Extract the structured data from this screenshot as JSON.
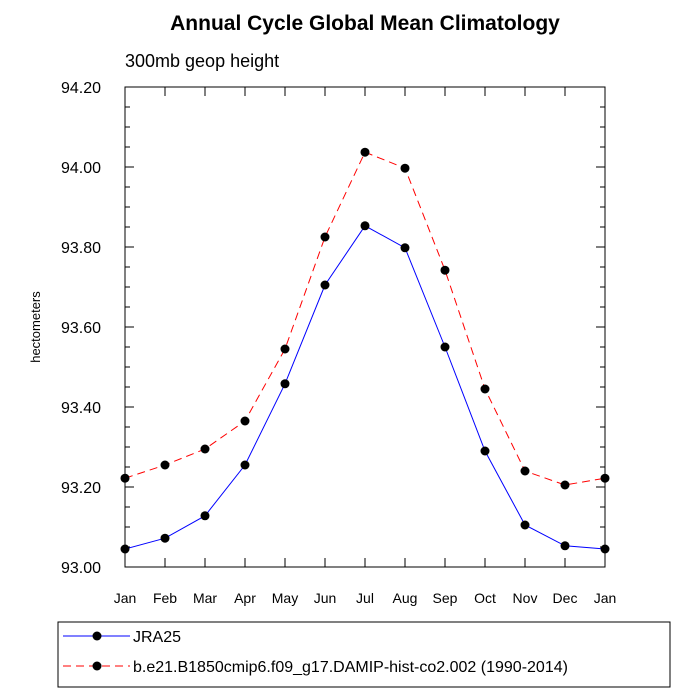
{
  "chart_data": {
    "type": "line",
    "title": "Annual Cycle Global Mean Climatology",
    "subtitle": "300mb geop height",
    "xlabel": "",
    "ylabel": "hectometers",
    "categories": [
      "Jan",
      "Feb",
      "Mar",
      "Apr",
      "May",
      "Jun",
      "Jul",
      "Aug",
      "Sep",
      "Oct",
      "Nov",
      "Dec",
      "Jan"
    ],
    "ylim": [
      93.0,
      94.2
    ],
    "yticks": [
      "93.00",
      "93.20",
      "93.40",
      "93.60",
      "93.80",
      "94.00",
      "94.20"
    ],
    "grid": false,
    "legend_position": "bottom",
    "series": [
      {
        "name": "JRA25",
        "color": "#0000ff",
        "dash": "solid",
        "values": [
          93.045,
          93.072,
          93.128,
          93.255,
          93.458,
          93.705,
          93.853,
          93.798,
          93.55,
          93.29,
          93.105,
          93.053,
          93.045
        ]
      },
      {
        "name": "b.e21.B1850cmip6.f09_g17.DAMIP-hist-co2.002 (1990-2014)",
        "color": "#ff0000",
        "dash": "dashed",
        "values": [
          93.222,
          93.255,
          93.295,
          93.365,
          93.545,
          93.825,
          94.037,
          93.997,
          93.742,
          93.445,
          93.24,
          93.205,
          93.222
        ]
      }
    ]
  }
}
